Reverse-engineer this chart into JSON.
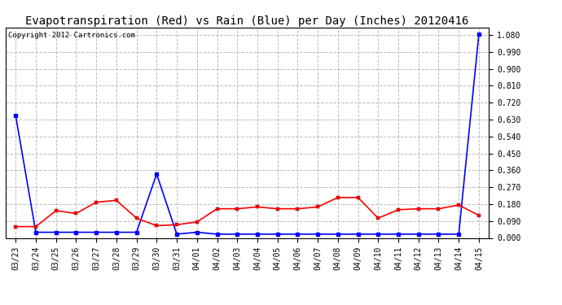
{
  "title": "Evapotranspiration (Red) vs Rain (Blue) per Day (Inches) 20120416",
  "copyright": "Copyright 2012 Cartronics.com",
  "x_labels": [
    "03/23",
    "03/24",
    "03/25",
    "03/26",
    "03/27",
    "03/28",
    "03/29",
    "03/30",
    "03/31",
    "04/01",
    "04/02",
    "04/03",
    "04/04",
    "04/05",
    "04/06",
    "04/07",
    "04/08",
    "04/09",
    "04/10",
    "04/11",
    "04/12",
    "04/13",
    "04/14",
    "04/15"
  ],
  "et_red": [
    0.06,
    0.06,
    0.145,
    0.13,
    0.19,
    0.2,
    0.105,
    0.065,
    0.07,
    0.085,
    0.155,
    0.155,
    0.165,
    0.155,
    0.155,
    0.165,
    0.215,
    0.215,
    0.105,
    0.15,
    0.155,
    0.155,
    0.175,
    0.12
  ],
  "rain_blue": [
    0.65,
    0.03,
    0.03,
    0.03,
    0.03,
    0.03,
    0.03,
    0.34,
    0.02,
    0.03,
    0.02,
    0.02,
    0.02,
    0.02,
    0.02,
    0.02,
    0.02,
    0.02,
    0.02,
    0.02,
    0.02,
    0.02,
    0.02,
    1.085
  ],
  "et_color": "#ff0000",
  "rain_color": "#0000ff",
  "bg_color": "#ffffff",
  "plot_bg_color": "#ffffff",
  "grid_color": "#bbbbbb",
  "title_fontsize": 10,
  "copyright_fontsize": 6.5,
  "tick_label_fontsize": 7,
  "y_ticks": [
    0.0,
    0.09,
    0.18,
    0.27,
    0.36,
    0.45,
    0.54,
    0.63,
    0.72,
    0.81,
    0.9,
    0.99,
    1.08
  ],
  "ylim": [
    0.0,
    1.12
  ],
  "marker": "s",
  "marker_size": 2.5,
  "linewidth": 1.2
}
